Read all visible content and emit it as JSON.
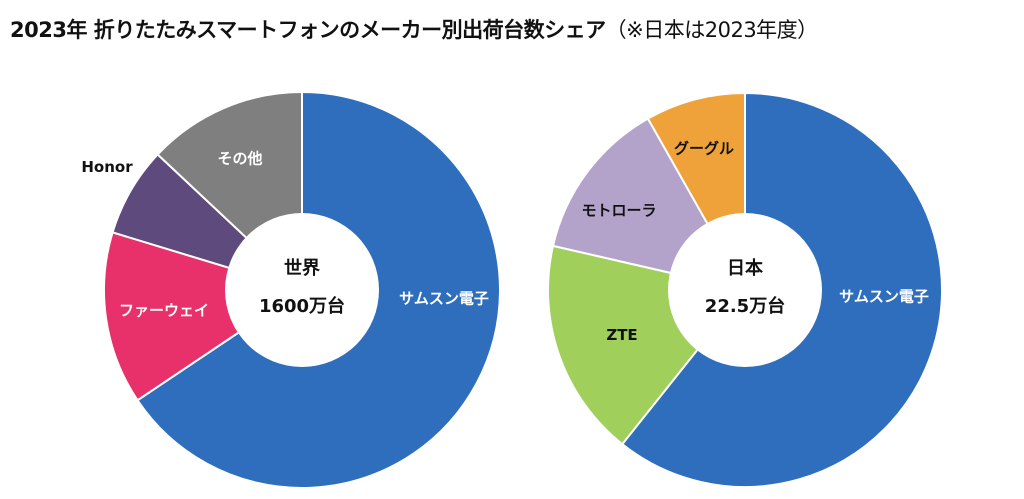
{
  "title": "2023年 折りたたみスマートフォンのメーカー別出荷台数シェア",
  "title_note": "（※日本は2023年度）",
  "chart_data": [
    {
      "type": "pie",
      "variant": "donut",
      "center_label": "世界",
      "total_label": "1600万台",
      "categories": [
        "サムスン電子",
        "ファーウェイ",
        "Honor",
        "その他"
      ],
      "values": [
        65.6,
        14.1,
        7.3,
        13.0
      ],
      "unit": "% (estimated)",
      "colors": [
        "#2e6ebd",
        "#e8306a",
        "#5e4a7c",
        "#7f7f7f"
      ]
    },
    {
      "type": "pie",
      "variant": "donut",
      "center_label": "日本",
      "total_label": "22.5万台",
      "categories": [
        "サムスン電子",
        "ZTE",
        "モトローラ",
        "グーグル"
      ],
      "values": [
        60.7,
        17.9,
        13.2,
        8.2
      ],
      "unit": "% (estimated)",
      "colors": [
        "#2e6ebd",
        "#a0cf5c",
        "#b3a2c9",
        "#f0a23a"
      ]
    }
  ]
}
